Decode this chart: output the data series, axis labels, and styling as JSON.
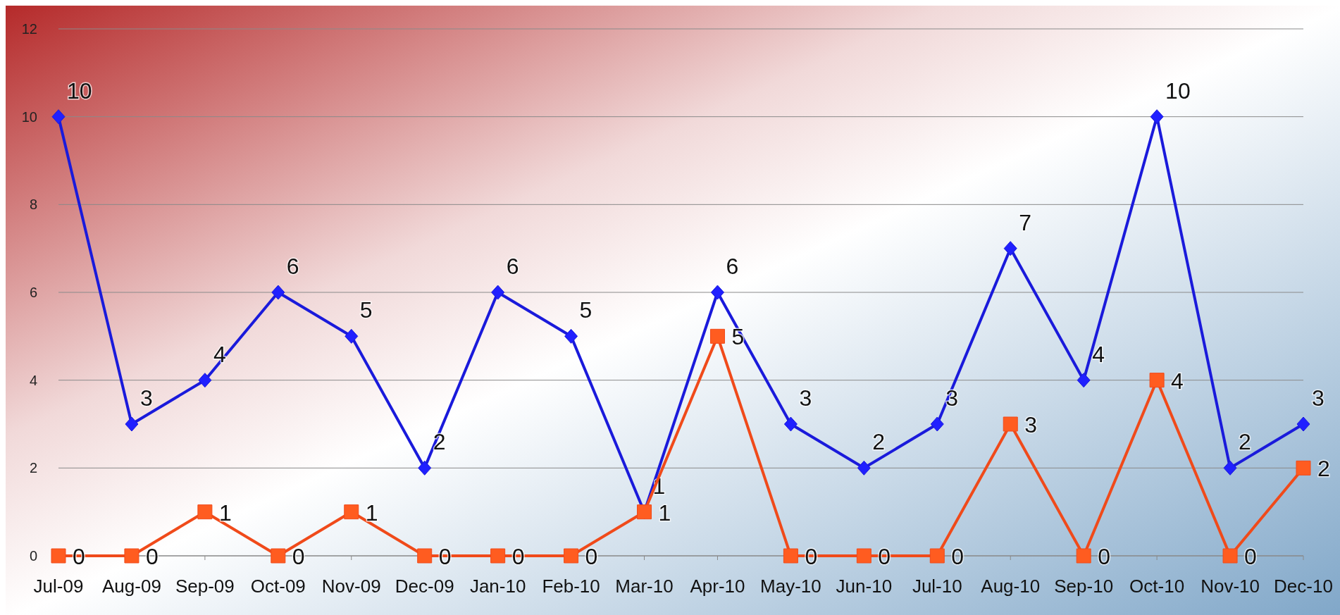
{
  "chart_data": {
    "type": "line",
    "categories": [
      "Jul-09",
      "Aug-09",
      "Sep-09",
      "Oct-09",
      "Nov-09",
      "Dec-09",
      "Jan-10",
      "Feb-10",
      "Mar-10",
      "Apr-10",
      "May-10",
      "Jun-10",
      "Jul-10",
      "Aug-10",
      "Sep-10",
      "Oct-10",
      "Nov-10",
      "Dec-10"
    ],
    "series": [
      {
        "color": "#1a1adb",
        "marker": "diamond",
        "values": [
          10,
          3,
          4,
          6,
          5,
          2,
          6,
          5,
          1,
          6,
          3,
          2,
          3,
          7,
          4,
          10,
          2,
          3
        ]
      },
      {
        "color": "#f04a1a",
        "marker": "square",
        "values": [
          0,
          0,
          1,
          0,
          1,
          0,
          0,
          0,
          1,
          5,
          0,
          0,
          0,
          3,
          0,
          4,
          0,
          2
        ]
      }
    ],
    "ylim": [
      0,
      12
    ],
    "yticks": [
      0,
      2,
      4,
      6,
      8,
      10,
      12
    ],
    "grid": "y",
    "data_labels": true
  }
}
